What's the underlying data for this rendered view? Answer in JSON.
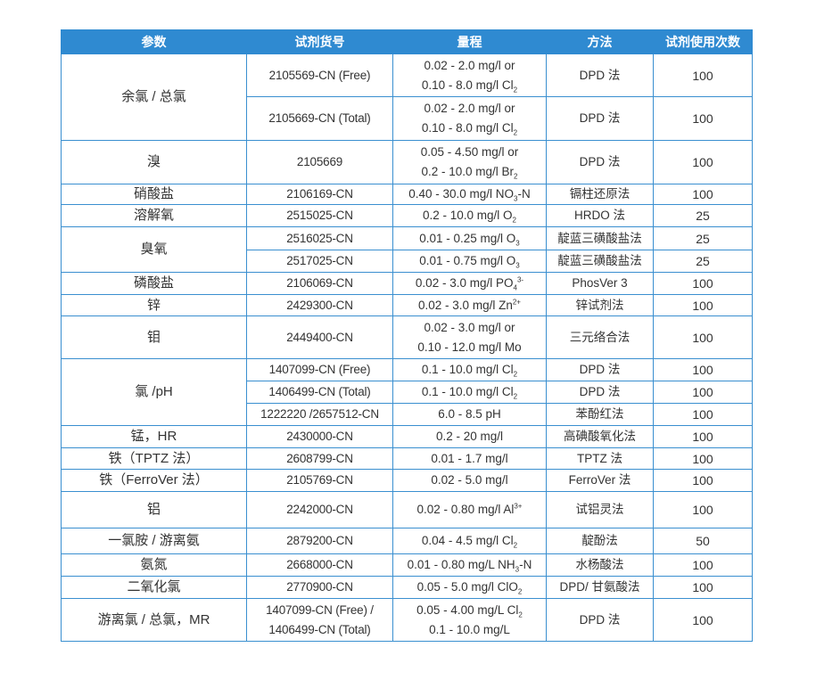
{
  "header": [
    "参数",
    "试剂货号",
    "量程",
    "方法",
    "试剂使用次数"
  ],
  "colors": {
    "header_bg": "#2f8ad1",
    "border": "#3a8fd0",
    "text": "#333333"
  },
  "groups": [
    {
      "param": "余氯 / 总氯",
      "rows": [
        {
          "code": [
            "2105569-CN (Free)"
          ],
          "range": [
            {
              "t": "0.02 - 2.0 mg/l or"
            },
            {
              "t": "0.10 - 8.0 mg/l Cl",
              "sub": "2"
            }
          ],
          "method": "DPD 法",
          "count": "100"
        },
        {
          "code": [
            "2105669-CN (Total)"
          ],
          "range": [
            {
              "t": "0.02 - 2.0 mg/l or"
            },
            {
              "t": "0.10 - 8.0 mg/l Cl",
              "sub": "2"
            }
          ],
          "method": "DPD 法",
          "count": "100"
        }
      ]
    },
    {
      "param": "溴",
      "rows": [
        {
          "code": [
            "2105669"
          ],
          "range": [
            {
              "t": "0.05 - 4.50 mg/l or"
            },
            {
              "t": "0.2 - 10.0 mg/l Br",
              "sub": "2"
            }
          ],
          "method": "DPD 法",
          "count": "100"
        }
      ]
    },
    {
      "param": "硝酸盐",
      "rows": [
        {
          "code": [
            "2106169-CN"
          ],
          "range": [
            {
              "t": "0.40 - 30.0 mg/l NO",
              "sub": "3",
              "after": "-N"
            }
          ],
          "method": "镉柱还原法",
          "count": "100"
        }
      ]
    },
    {
      "param": "溶解氧",
      "rows": [
        {
          "code": [
            "2515025-CN"
          ],
          "range": [
            {
              "t": "0.2 - 10.0 mg/l O",
              "sub": "2"
            }
          ],
          "method": "HRDO 法",
          "count": "25"
        }
      ]
    },
    {
      "param": "臭氧",
      "rows": [
        {
          "code": [
            "2516025-CN"
          ],
          "range": [
            {
              "t": "0.01 - 0.25 mg/l O",
              "sub": "3"
            }
          ],
          "method": "靛蓝三磺酸盐法",
          "count": "25"
        },
        {
          "code": [
            "2517025-CN"
          ],
          "range": [
            {
              "t": "0.01 - 0.75 mg/l O",
              "sub": "3"
            }
          ],
          "method": "靛蓝三磺酸盐法",
          "count": "25"
        }
      ]
    },
    {
      "param": "磷酸盐",
      "rows": [
        {
          "code": [
            "2106069-CN"
          ],
          "range": [
            {
              "t": "0.02 - 3.0 mg/l PO",
              "sub": "4",
              "sup": "3-"
            }
          ],
          "method": "PhosVer 3",
          "count": "100"
        }
      ]
    },
    {
      "param": "锌",
      "rows": [
        {
          "code": [
            "2429300-CN"
          ],
          "range": [
            {
              "t": "0.02 - 3.0 mg/l Zn",
              "sup": "2+"
            }
          ],
          "method": "锌试剂法",
          "count": "100"
        }
      ]
    },
    {
      "param": "钼",
      "rows": [
        {
          "code": [
            "2449400-CN"
          ],
          "range": [
            {
              "t": "0.02 - 3.0 mg/l or"
            },
            {
              "t": "0.10 - 12.0 mg/l Mo"
            }
          ],
          "method": "三元络合法",
          "count": "100"
        }
      ]
    },
    {
      "param": "氯 /pH",
      "rows": [
        {
          "code": [
            "1407099-CN (Free)"
          ],
          "range": [
            {
              "t": "0.1 - 10.0 mg/l Cl",
              "sub": "2"
            }
          ],
          "method": "DPD 法",
          "count": "100"
        },
        {
          "code": [
            "1406499-CN (Total)"
          ],
          "range": [
            {
              "t": "0.1 - 10.0 mg/l Cl",
              "sub": "2"
            }
          ],
          "method": "DPD 法",
          "count": "100"
        },
        {
          "code": [
            "1222220 /2657512-CN"
          ],
          "range": [
            {
              "t": "6.0 - 8.5 pH"
            }
          ],
          "method": "苯酚红法",
          "count": "100"
        }
      ]
    },
    {
      "param": "锰，HR",
      "rows": [
        {
          "code": [
            "2430000-CN"
          ],
          "range": [
            {
              "t": "0.2 - 20 mg/l"
            }
          ],
          "method": "高碘酸氧化法",
          "count": "100"
        }
      ]
    },
    {
      "param": "铁（TPTZ 法）",
      "rows": [
        {
          "code": [
            "2608799-CN"
          ],
          "range": [
            {
              "t": "0.01 - 1.7 mg/l"
            }
          ],
          "method": "TPTZ 法",
          "count": "100"
        }
      ]
    },
    {
      "param": "铁（FerroVer 法）",
      "rows": [
        {
          "code": [
            "2105769-CN"
          ],
          "range": [
            {
              "t": "0.02 - 5.0 mg/l"
            }
          ],
          "method": "FerroVer 法",
          "count": "100"
        }
      ]
    },
    {
      "param": "铝",
      "rows": [
        {
          "code": [
            "2242000-CN"
          ],
          "range": [
            {
              "t": "0.02 - 0.80 mg/l Al",
              "sup": "3+"
            }
          ],
          "method": "试铝灵法",
          "count": "100"
        }
      ]
    },
    {
      "param": "一氯胺 / 游离氨",
      "rows": [
        {
          "code": [
            "2879200-CN"
          ],
          "range": [
            {
              "t": "0.04 - 4.5 mg/l Cl",
              "sub": "2"
            }
          ],
          "method": "靛酚法",
          "count": "50"
        }
      ]
    },
    {
      "param": "氨氮",
      "rows": [
        {
          "code": [
            "2668000-CN"
          ],
          "range": [
            {
              "t": "0.01 - 0.80 mg/L NH",
              "sub": "3",
              "after": "-N"
            }
          ],
          "method": "水杨酸法",
          "count": "100"
        }
      ]
    },
    {
      "param": "二氧化氯",
      "rows": [
        {
          "code": [
            "2770900-CN"
          ],
          "range": [
            {
              "t": "0.05 - 5.0 mg/l ClO",
              "sub": "2"
            }
          ],
          "method": "DPD/ 甘氨酸法",
          "count": "100"
        }
      ]
    },
    {
      "param": "游离氯 / 总氯，MR",
      "rows": [
        {
          "code": [
            "1407099-CN (Free) /",
            "1406499-CN (Total)"
          ],
          "range": [
            {
              "t": "0.05 - 4.00 mg/L Cl",
              "sub": "2"
            },
            {
              "t": "0.1 - 10.0 mg/L"
            }
          ],
          "method": "DPD 法",
          "count": "100"
        }
      ]
    }
  ]
}
